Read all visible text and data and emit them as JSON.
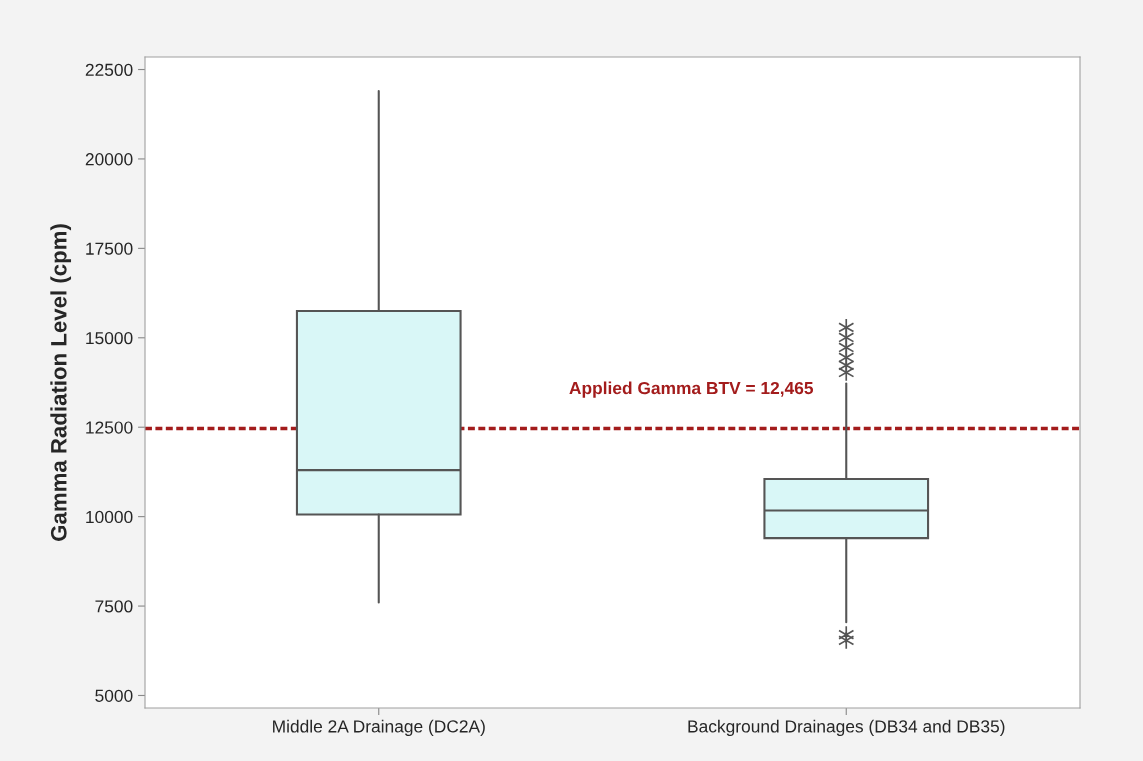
{
  "chart_data": {
    "type": "box",
    "ylabel": "Gamma Radiation Level (cpm)",
    "categories": [
      "Middle 2A Drainage (DC2A)",
      "Background Drainages (DB34 and DB35)"
    ],
    "boxes": [
      {
        "low": 7600,
        "q1": 10060,
        "median": 11300,
        "q3": 15750,
        "high": 21900
      },
      {
        "low": 7050,
        "q1": 9400,
        "median": 10170,
        "q3": 11050,
        "high": 13720,
        "outliers": [
          15290,
          15010,
          14730,
          14450,
          14230,
          14030,
          6700,
          6540
        ]
      }
    ],
    "ylim": [
      4650,
      22850
    ],
    "yticks": [
      5000,
      7500,
      10000,
      12500,
      15000,
      17500,
      20000,
      22500
    ],
    "ref_lines": [
      {
        "axis": "y",
        "value": 12465,
        "label": "Applied Gamma BTV = 12,465",
        "color": "#a31c1c",
        "line_style": "dashed"
      }
    ],
    "color": "#d9f7f7",
    "grid": false
  }
}
